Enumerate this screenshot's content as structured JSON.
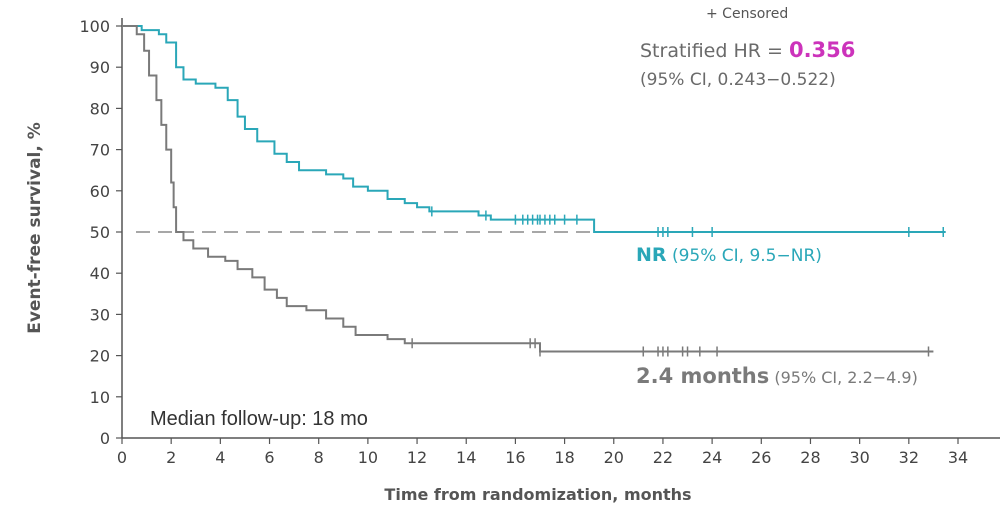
{
  "chart_data": {
    "type": "line",
    "title": "",
    "xlabel": "Time from randomization, months",
    "ylabel": "Event-free survival, %",
    "xlim": [
      0,
      35
    ],
    "ylim": [
      0,
      100
    ],
    "x_ticks": [
      "0",
      "2",
      "4",
      "6",
      "8",
      "10",
      "12",
      "14",
      "16",
      "18",
      "20",
      "22",
      "24",
      "26",
      "28",
      "30",
      "32",
      "34"
    ],
    "y_ticks": [
      "0",
      "10",
      "20",
      "30",
      "40",
      "50",
      "60",
      "70",
      "80",
      "90",
      "100"
    ],
    "reference_line": {
      "y": 50,
      "style": "dashed"
    },
    "series": [
      {
        "color": "#2aa7b8",
        "steps": [
          [
            0,
            100
          ],
          [
            0.8,
            99
          ],
          [
            1.5,
            98
          ],
          [
            1.8,
            96
          ],
          [
            2.2,
            90
          ],
          [
            2.5,
            87
          ],
          [
            3.0,
            86
          ],
          [
            3.8,
            85
          ],
          [
            4.3,
            82
          ],
          [
            4.7,
            78
          ],
          [
            5.0,
            75
          ],
          [
            5.5,
            72
          ],
          [
            6.2,
            69
          ],
          [
            6.7,
            67
          ],
          [
            7.2,
            65
          ],
          [
            8.3,
            64
          ],
          [
            9.0,
            63
          ],
          [
            9.4,
            61
          ],
          [
            10.0,
            60
          ],
          [
            10.8,
            58
          ],
          [
            11.5,
            57
          ],
          [
            12.0,
            56
          ],
          [
            12.5,
            55
          ],
          [
            14.5,
            54
          ],
          [
            15.0,
            53
          ],
          [
            19.2,
            50
          ],
          [
            33.5,
            50
          ]
        ],
        "censored": [
          12.6,
          14.8,
          16.0,
          16.3,
          16.5,
          16.7,
          16.9,
          17.0,
          17.2,
          17.4,
          17.6,
          18.0,
          18.5,
          21.8,
          22.0,
          22.2,
          23.2,
          24.0,
          32.0,
          33.4
        ]
      },
      {
        "color": "#7a7a7a",
        "steps": [
          [
            0,
            100
          ],
          [
            0.6,
            98
          ],
          [
            0.9,
            94
          ],
          [
            1.1,
            88
          ],
          [
            1.4,
            82
          ],
          [
            1.6,
            76
          ],
          [
            1.8,
            70
          ],
          [
            2.0,
            62
          ],
          [
            2.1,
            56
          ],
          [
            2.2,
            50
          ],
          [
            2.5,
            48
          ],
          [
            2.9,
            46
          ],
          [
            3.5,
            44
          ],
          [
            4.2,
            43
          ],
          [
            4.7,
            41
          ],
          [
            5.3,
            39
          ],
          [
            5.8,
            36
          ],
          [
            6.3,
            34
          ],
          [
            6.7,
            32
          ],
          [
            7.5,
            31
          ],
          [
            8.3,
            29
          ],
          [
            9.0,
            27
          ],
          [
            9.5,
            25
          ],
          [
            10.8,
            24
          ],
          [
            11.5,
            23
          ],
          [
            17.0,
            21
          ],
          [
            33.0,
            21
          ]
        ],
        "censored": [
          11.8,
          16.6,
          16.8,
          17.0,
          21.2,
          21.8,
          22.0,
          22.2,
          22.8,
          23.0,
          23.5,
          24.2,
          32.8
        ]
      }
    ]
  },
  "legend": {
    "censored": "+ Censored"
  },
  "hr": {
    "label": "Stratified HR = ",
    "value": "0.356",
    "ci": "(95% CI, 0.243−0.522)"
  },
  "nr_label": {
    "main": "NR",
    "ci": " (95% CI, 9.5−NR)"
  },
  "control_label": {
    "main": "2.4 months",
    "ci": " (95% CI, 2.2−4.9)"
  },
  "followup": "Median follow-up: 18 mo"
}
